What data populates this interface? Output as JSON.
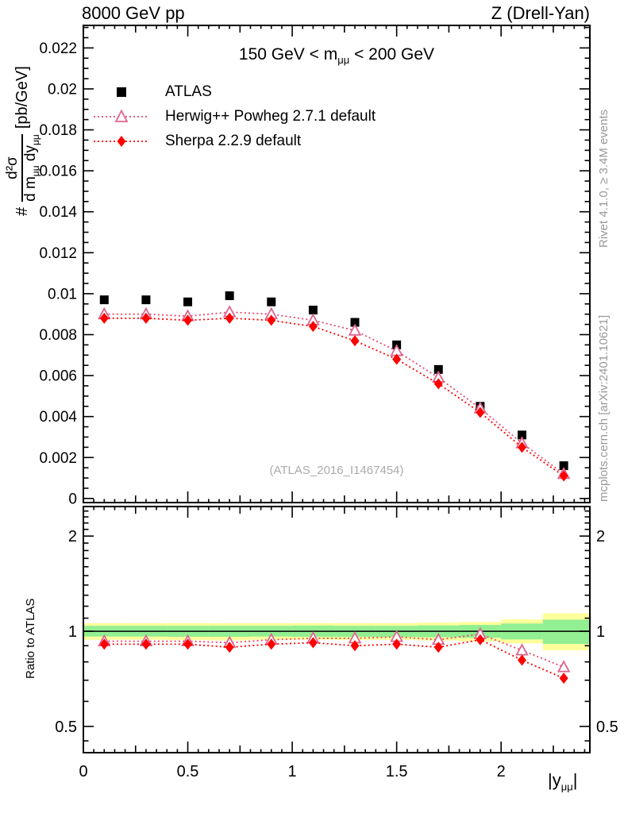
{
  "header": {
    "left": "8000 GeV pp",
    "right": "Z (Drell-Yan)"
  },
  "subtitle": {
    "p1": "150 GeV < m",
    "sub": "μμ",
    "p2": " < 200 GeV"
  },
  "legend": {
    "items": [
      {
        "label": "ATLAS",
        "marker": "square",
        "color": "#000000"
      },
      {
        "label": "Herwig++ Powheg 2.7.1 default",
        "marker": "triangle-open",
        "color": "#e0648f",
        "line": "#e8486e"
      },
      {
        "label": "Sherpa 2.2.9 default",
        "marker": "diamond",
        "color": "#ff0000",
        "line": "#ff0000"
      }
    ]
  },
  "watermark": "(ATLAS_2016_I1467454)",
  "side_notes": {
    "top_right": "Rivet 4.1.0, ≥ 3.4M events",
    "bottom_right": "mcplots.cern.ch [arXiv:2401.10621]"
  },
  "axes": {
    "main_y_label": {
      "prefix": "#",
      "num": "d²σ",
      "den1": "d m",
      "densub1": "μμ",
      "den2": " dy",
      "densub2": "μμ",
      "units": "[pb/GeV]"
    },
    "ratio_y_label": "Ratio to ATLAS",
    "x_label": {
      "p1": "|y",
      "sub": "μμ",
      "p2": "|"
    }
  },
  "colors": {
    "band_yellow": "#ffff9c",
    "band_green": "#92ef92",
    "frame": "#000000",
    "gray_text": "#999999",
    "watermark": "#ababab"
  },
  "chart_data": [
    {
      "type": "scatter",
      "panel": "main",
      "title": "Z (Drell-Yan), 150 GeV < m_mumu < 200 GeV",
      "xlabel": "|y_mumu|",
      "ylabel": "# d2sigma / (d m_mumu dy_mumu) [pb/GeV]",
      "xlim": [
        0,
        2.425
      ],
      "ylim": [
        -0.0002,
        0.0231
      ],
      "x": [
        0.1,
        0.3,
        0.5,
        0.7,
        0.9,
        1.1,
        1.3,
        1.5,
        1.7,
        1.9,
        2.1,
        2.3
      ],
      "series": [
        {
          "name": "ATLAS",
          "marker": "square",
          "color": "#000000",
          "line_style": "none",
          "values": [
            0.0097,
            0.0097,
            0.0096,
            0.0099,
            0.0096,
            0.0092,
            0.0086,
            0.0075,
            0.0063,
            0.0045,
            0.0031,
            0.0016
          ]
        },
        {
          "name": "Herwig++ Powheg 2.7.1 default",
          "marker": "triangle-open",
          "color": "#e0648f",
          "line_color": "#e8486e",
          "line_style": "dotted",
          "values": [
            0.009,
            0.009,
            0.0089,
            0.0091,
            0.009,
            0.0087,
            0.0082,
            0.0072,
            0.0059,
            0.0044,
            0.0027,
            0.0012
          ]
        },
        {
          "name": "Sherpa 2.2.9 default",
          "marker": "diamond",
          "color": "#ff0000",
          "line_color": "#ff0000",
          "line_style": "dotted",
          "values": [
            0.0088,
            0.0088,
            0.0087,
            0.0088,
            0.0087,
            0.0084,
            0.0077,
            0.0068,
            0.0056,
            0.0042,
            0.0025,
            0.0011
          ]
        }
      ],
      "y_major_ticks": [
        0,
        0.002,
        0.004,
        0.006,
        0.008,
        0.01,
        0.012,
        0.014,
        0.016,
        0.018,
        0.02,
        0.022
      ],
      "y_tick_labels": [
        "0",
        "0.002",
        "0.004",
        "0.006",
        "0.008",
        "0.01",
        "0.012",
        "0.014",
        "0.016",
        "0.018",
        "0.02",
        "0.022"
      ],
      "y_minor_step": 0.0005,
      "x_major_ticks": [
        0,
        0.5,
        1,
        1.5,
        2
      ],
      "x_tick_labels": [
        "0",
        "0.5",
        "1",
        "1.5",
        "2"
      ],
      "x_minor_step": 0.05,
      "grid": false,
      "legend_position": "top-left-inside"
    },
    {
      "type": "ratio",
      "panel": "ratio",
      "ylabel": "Ratio to ATLAS",
      "ylog": true,
      "xlim": [
        0,
        2.425
      ],
      "ylim": [
        0.413,
        2.48
      ],
      "x": [
        0.1,
        0.3,
        0.5,
        0.7,
        0.9,
        1.1,
        1.3,
        1.5,
        1.7,
        1.9,
        2.1,
        2.3
      ],
      "series": [
        {
          "name": "Herwig++ Powheg 2.7.1 default",
          "marker": "triangle-open",
          "color": "#e0648f",
          "line_color": "#e8486e",
          "line_style": "dotted",
          "values": [
            0.93,
            0.93,
            0.93,
            0.92,
            0.94,
            0.95,
            0.95,
            0.96,
            0.94,
            0.98,
            0.87,
            0.77
          ]
        },
        {
          "name": "Sherpa 2.2.9 default",
          "marker": "diamond",
          "color": "#ff0000",
          "line_color": "#ff0000",
          "line_style": "dotted",
          "values": [
            0.91,
            0.91,
            0.91,
            0.89,
            0.91,
            0.92,
            0.9,
            0.91,
            0.89,
            0.94,
            0.81,
            0.71
          ]
        }
      ],
      "reference_line": 1,
      "y_major_ticks": [
        0.5,
        1,
        2
      ],
      "y_tick_labels": [
        "0.5",
        "1",
        "2"
      ],
      "y_minor_ticks": [
        0.45,
        0.6,
        0.7,
        0.8,
        0.9,
        1.1,
        1.2,
        1.3,
        1.4,
        1.5,
        1.6,
        1.7,
        1.8,
        1.9,
        2.1,
        2.2,
        2.3,
        2.4
      ],
      "bands": {
        "edges": [
          0,
          0.2,
          0.4,
          0.6,
          0.8,
          1.0,
          1.2,
          1.4,
          1.6,
          1.8,
          2.0,
          2.2,
          2.425
        ],
        "yellow": [
          [
            0.94,
            1.06
          ],
          [
            0.94,
            1.06
          ],
          [
            0.938,
            1.062
          ],
          [
            0.936,
            1.06
          ],
          [
            0.94,
            1.06
          ],
          [
            0.94,
            1.062
          ],
          [
            0.938,
            1.06
          ],
          [
            0.94,
            1.06
          ],
          [
            0.935,
            1.065
          ],
          [
            0.93,
            1.07
          ],
          [
            0.915,
            1.09
          ],
          [
            0.87,
            1.14
          ]
        ],
        "green": [
          [
            0.962,
            1.04
          ],
          [
            0.962,
            1.04
          ],
          [
            0.96,
            1.04
          ],
          [
            0.96,
            1.04
          ],
          [
            0.962,
            1.04
          ],
          [
            0.96,
            1.042
          ],
          [
            0.96,
            1.04
          ],
          [
            0.96,
            1.04
          ],
          [
            0.957,
            1.043
          ],
          [
            0.953,
            1.047
          ],
          [
            0.942,
            1.058
          ],
          [
            0.912,
            1.088
          ]
        ]
      }
    }
  ]
}
